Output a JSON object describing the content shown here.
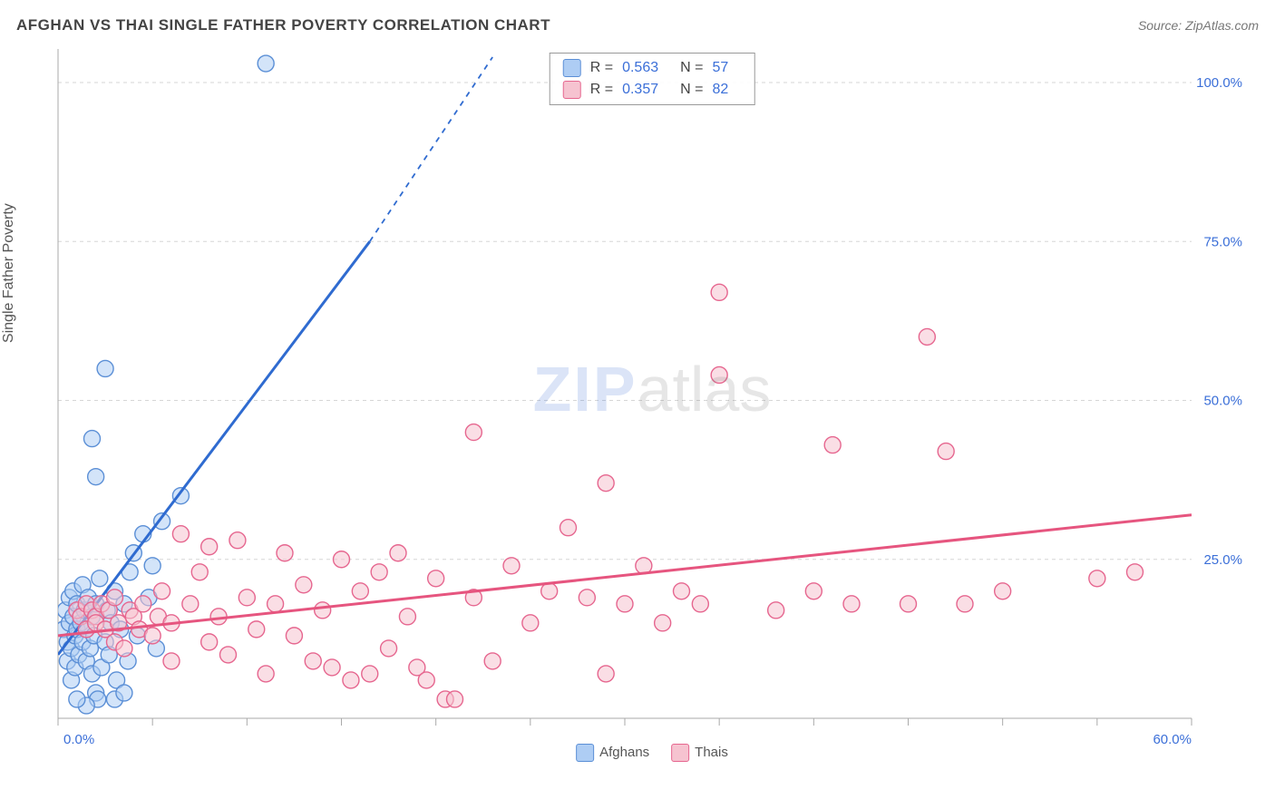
{
  "title": "AFGHAN VS THAI SINGLE FATHER POVERTY CORRELATION CHART",
  "source": "Source: ZipAtlas.com",
  "ylabel": "Single Father Poverty",
  "watermark_a": "ZIP",
  "watermark_b": "atlas",
  "chart": {
    "type": "scatter",
    "background_color": "#ffffff",
    "grid_color": "#d6d6d6",
    "grid_dash": "4 4",
    "axis_color": "#aaaaaa",
    "label_color": "#3b6fd8",
    "xlim": [
      0,
      60
    ],
    "ylim": [
      0,
      105
    ],
    "y_ticks": [
      25,
      50,
      75,
      100
    ],
    "y_tick_labels": [
      "25.0%",
      "50.0%",
      "75.0%",
      "100.0%"
    ],
    "x_tick_start": "0.0%",
    "x_tick_end": "60.0%",
    "x_minor_step": 5,
    "marker_radius": 9,
    "marker_opacity": 0.55,
    "line_width": 3
  },
  "series": [
    {
      "label": "Afghans",
      "fill": "#aecdf4",
      "stroke": "#5b8fd6",
      "line_color": "#2f6bd0",
      "R": "0.563",
      "N": "57",
      "regression": {
        "x1": 0,
        "y1": 10,
        "x2": 16.5,
        "y2": 75,
        "dash_above_y": 75,
        "dash_x2": 23,
        "dash_y2": 104
      },
      "points": [
        [
          0.3,
          14
        ],
        [
          0.4,
          17
        ],
        [
          0.5,
          9
        ],
        [
          0.5,
          12
        ],
        [
          0.6,
          15
        ],
        [
          0.6,
          19
        ],
        [
          0.7,
          6
        ],
        [
          0.7,
          11
        ],
        [
          0.8,
          16
        ],
        [
          0.8,
          20
        ],
        [
          0.9,
          8
        ],
        [
          0.9,
          13
        ],
        [
          1.0,
          18
        ],
        [
          1.0,
          14
        ],
        [
          1.1,
          10
        ],
        [
          1.2,
          15
        ],
        [
          1.3,
          21
        ],
        [
          1.3,
          12
        ],
        [
          1.4,
          17
        ],
        [
          1.5,
          9
        ],
        [
          1.5,
          14
        ],
        [
          1.6,
          19
        ],
        [
          1.7,
          11
        ],
        [
          1.8,
          16
        ],
        [
          1.8,
          7
        ],
        [
          1.9,
          13
        ],
        [
          2.0,
          18
        ],
        [
          2.0,
          4
        ],
        [
          2.1,
          3
        ],
        [
          2.2,
          22
        ],
        [
          2.3,
          8
        ],
        [
          2.5,
          12
        ],
        [
          2.6,
          17
        ],
        [
          2.7,
          10
        ],
        [
          2.8,
          15
        ],
        [
          3.0,
          20
        ],
        [
          3.1,
          6
        ],
        [
          3.3,
          14
        ],
        [
          3.5,
          18
        ],
        [
          3.7,
          9
        ],
        [
          3.8,
          23
        ],
        [
          4.0,
          26
        ],
        [
          4.2,
          13
        ],
        [
          4.5,
          29
        ],
        [
          4.8,
          19
        ],
        [
          5.0,
          24
        ],
        [
          5.2,
          11
        ],
        [
          5.5,
          31
        ],
        [
          2.0,
          38
        ],
        [
          1.8,
          44
        ],
        [
          6.5,
          35
        ],
        [
          3.0,
          3
        ],
        [
          3.5,
          4
        ],
        [
          2.5,
          55
        ],
        [
          1.5,
          2
        ],
        [
          1.0,
          3
        ],
        [
          11.0,
          103
        ]
      ]
    },
    {
      "label": "Thais",
      "fill": "#f6c3d0",
      "stroke": "#e6668f",
      "line_color": "#e6557f",
      "R": "0.357",
      "N": "82",
      "regression": {
        "x1": 0,
        "y1": 13,
        "x2": 60,
        "y2": 32
      },
      "points": [
        [
          1,
          17
        ],
        [
          1.2,
          16
        ],
        [
          1.5,
          18
        ],
        [
          1.5,
          14
        ],
        [
          1.8,
          17
        ],
        [
          2,
          16
        ],
        [
          2,
          15
        ],
        [
          2.3,
          18
        ],
        [
          2.5,
          14
        ],
        [
          2.7,
          17
        ],
        [
          3,
          19
        ],
        [
          3,
          12
        ],
        [
          3.2,
          15
        ],
        [
          3.5,
          11
        ],
        [
          3.8,
          17
        ],
        [
          4,
          16
        ],
        [
          4.3,
          14
        ],
        [
          4.5,
          18
        ],
        [
          5,
          13
        ],
        [
          5.3,
          16
        ],
        [
          5.5,
          20
        ],
        [
          6,
          15
        ],
        [
          6,
          9
        ],
        [
          6.5,
          29
        ],
        [
          7,
          18
        ],
        [
          7.5,
          23
        ],
        [
          8,
          12
        ],
        [
          8,
          27
        ],
        [
          8.5,
          16
        ],
        [
          9,
          10
        ],
        [
          9.5,
          28
        ],
        [
          10,
          19
        ],
        [
          10.5,
          14
        ],
        [
          11,
          7
        ],
        [
          11.5,
          18
        ],
        [
          12,
          26
        ],
        [
          12.5,
          13
        ],
        [
          13,
          21
        ],
        [
          13.5,
          9
        ],
        [
          14,
          17
        ],
        [
          14.5,
          8
        ],
        [
          15,
          25
        ],
        [
          15.5,
          6
        ],
        [
          16,
          20
        ],
        [
          16.5,
          7
        ],
        [
          17,
          23
        ],
        [
          17.5,
          11
        ],
        [
          18,
          26
        ],
        [
          18.5,
          16
        ],
        [
          19,
          8
        ],
        [
          19.5,
          6
        ],
        [
          20,
          22
        ],
        [
          20.5,
          3
        ],
        [
          21,
          3
        ],
        [
          22,
          19
        ],
        [
          22,
          45
        ],
        [
          23,
          9
        ],
        [
          24,
          24
        ],
        [
          25,
          15
        ],
        [
          26,
          20
        ],
        [
          27,
          30
        ],
        [
          28,
          19
        ],
        [
          29,
          7
        ],
        [
          29,
          37
        ],
        [
          30,
          18
        ],
        [
          31,
          24
        ],
        [
          32,
          15
        ],
        [
          33,
          20
        ],
        [
          34,
          18
        ],
        [
          35,
          67
        ],
        [
          35,
          54
        ],
        [
          38,
          17
        ],
        [
          40,
          20
        ],
        [
          41,
          43
        ],
        [
          42,
          18
        ],
        [
          45,
          18
        ],
        [
          46,
          60
        ],
        [
          47,
          42
        ],
        [
          48,
          18
        ],
        [
          50,
          20
        ],
        [
          55,
          22
        ],
        [
          57,
          23
        ]
      ]
    }
  ],
  "legend": {
    "items": [
      {
        "label": "Afghans",
        "fill": "#aecdf4",
        "stroke": "#5b8fd6"
      },
      {
        "label": "Thais",
        "fill": "#f6c3d0",
        "stroke": "#e6668f"
      }
    ]
  },
  "stats_labels": {
    "R": "R =",
    "N": "N ="
  }
}
